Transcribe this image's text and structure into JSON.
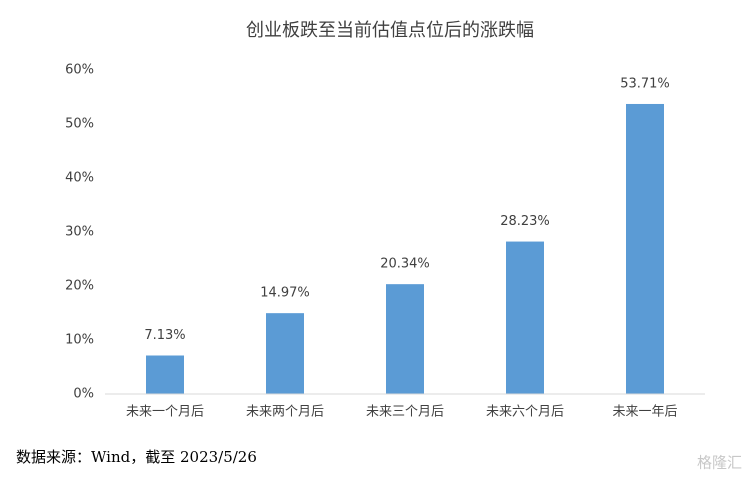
{
  "chart_data": {
    "type": "bar",
    "title": "创业板跌至当前估值点位后的涨跌幅",
    "categories": [
      "未来一个月后",
      "未来两个月后",
      "未来三个月后",
      "未来六个月后",
      "未来一年后"
    ],
    "values": [
      7.13,
      14.97,
      20.34,
      28.23,
      53.71
    ],
    "value_labels": [
      "7.13%",
      "14.97%",
      "20.34%",
      "28.23%",
      "53.71%"
    ],
    "color": "#5b9bd5",
    "ylim": [
      0,
      60
    ],
    "yticks": [
      {
        "value": 0,
        "label": "0%"
      },
      {
        "value": 10,
        "label": "10%"
      },
      {
        "value": 20,
        "label": "20%"
      },
      {
        "value": 30,
        "label": "30%"
      },
      {
        "value": 40,
        "label": "40%"
      },
      {
        "value": 50,
        "label": "50%"
      },
      {
        "value": 60,
        "label": "60%"
      }
    ],
    "grid": false,
    "source": "数据来源：Wind，截至 2023/5/26",
    "watermark": "格隆汇"
  }
}
